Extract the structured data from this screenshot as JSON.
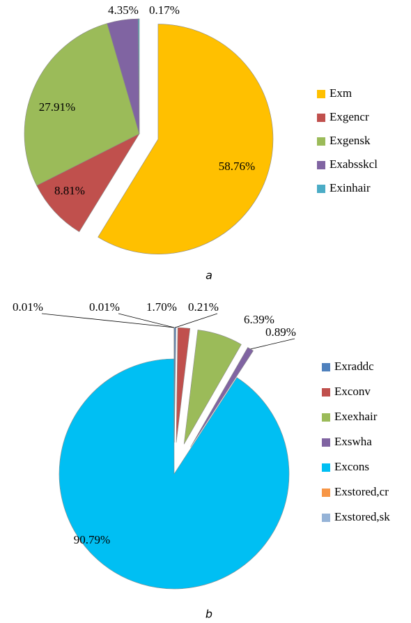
{
  "chart_data": [
    {
      "type": "pie",
      "caption": "a",
      "categories": [
        "Exm",
        "Exgencr",
        "Exgensk",
        "Exabsskcl",
        "Exinhair"
      ],
      "values": [
        58.76,
        8.81,
        27.91,
        4.35,
        0.17
      ],
      "value_labels": [
        "58.76%",
        "8.81%",
        "27.91%",
        "4.35%",
        "0.17%"
      ],
      "colors": [
        "#FFC000",
        "#C0504D",
        "#9BBB59",
        "#8064A2",
        "#4BACC6"
      ],
      "legend": "right"
    },
    {
      "type": "pie",
      "caption": "b",
      "categories": [
        "Exraddc",
        "Exconv",
        "Exexhair",
        "Exswha",
        "Excons",
        "Exstored,cr",
        "Exstored,sk"
      ],
      "values": [
        0.21,
        1.7,
        6.39,
        0.89,
        90.79,
        0.01,
        0.01
      ],
      "value_labels": [
        "0.21%",
        "1.70%",
        "6.39%",
        "0.89%",
        "90.79%",
        "0.01%",
        "0.01%"
      ],
      "colors": [
        "#4F81BD",
        "#C0504D",
        "#9BBB59",
        "#8064A2",
        "#00BFF3",
        "#F79646",
        "#95B3D7"
      ],
      "legend": "right"
    }
  ]
}
